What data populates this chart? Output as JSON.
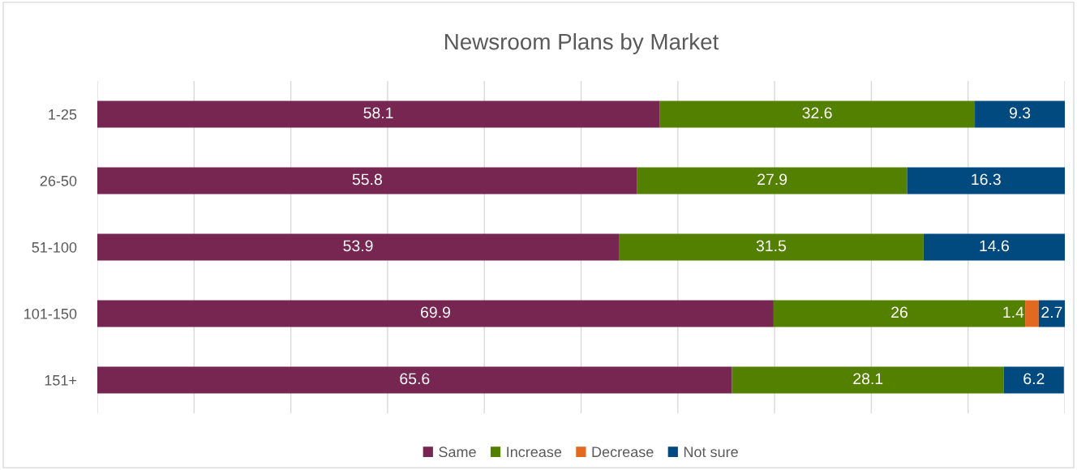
{
  "chart_data": {
    "type": "bar",
    "orientation": "horizontal",
    "stacked": true,
    "title": "Newsroom Plans by Market",
    "categories": [
      "1-25",
      "26-50",
      "51-100",
      "101-150",
      "151+"
    ],
    "series": [
      {
        "name": "Same",
        "color": "#762651",
        "values": [
          58.1,
          55.8,
          53.9,
          69.9,
          65.6
        ]
      },
      {
        "name": "Increase",
        "color": "#548000",
        "values": [
          32.6,
          27.9,
          31.5,
          26,
          28.1
        ]
      },
      {
        "name": "Decrease",
        "color": "#e2691f",
        "values": [
          null,
          null,
          null,
          1.4,
          null
        ]
      },
      {
        "name": "Not sure",
        "color": "#004a80",
        "values": [
          9.3,
          16.3,
          14.6,
          2.7,
          6.2
        ]
      }
    ],
    "xlim": [
      0,
      100
    ],
    "xticks": [
      {
        "value": 0,
        "label": null
      },
      {
        "value": 10,
        "label": null
      },
      {
        "value": 20,
        "label": null
      },
      {
        "value": 30,
        "label": null
      },
      {
        "value": 40,
        "label": null
      },
      {
        "value": 50,
        "label": null
      },
      {
        "value": 60,
        "label": null
      },
      {
        "value": 70,
        "label": null
      },
      {
        "value": 80,
        "label": null
      },
      {
        "value": 90,
        "label": null
      },
      {
        "value": 100,
        "label": null
      }
    ],
    "tick_labels": "y",
    "grid": "x",
    "legend": "bottom",
    "data_labels": true
  }
}
